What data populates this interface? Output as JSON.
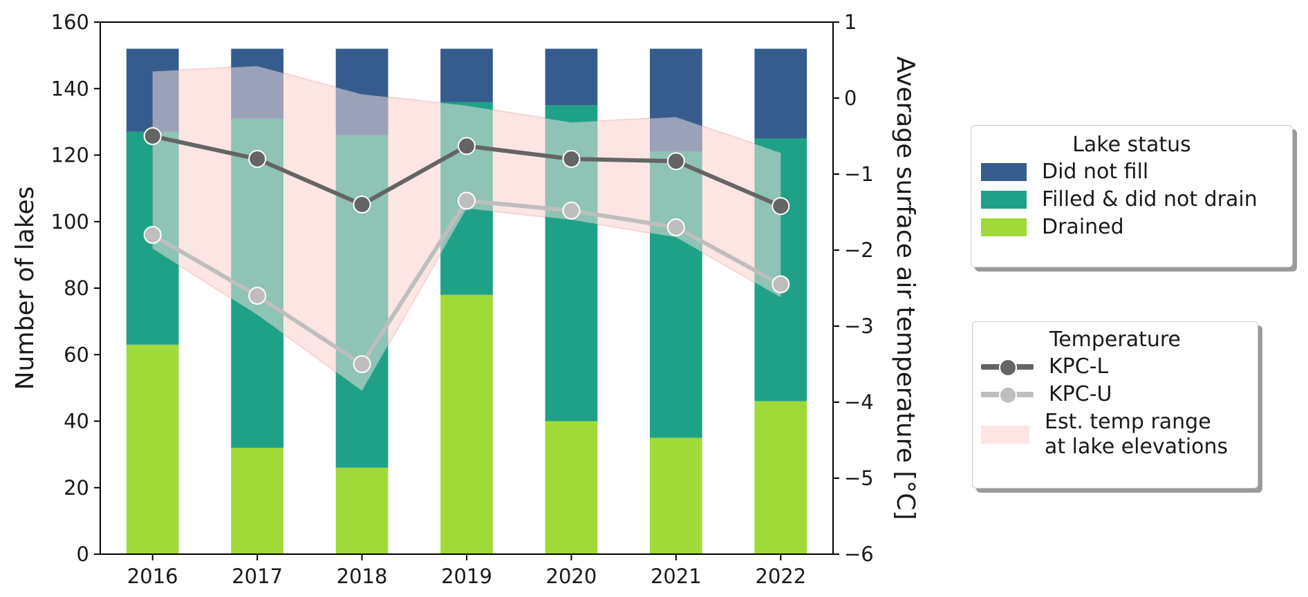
{
  "chart_data": {
    "type": "bar",
    "stacked": true,
    "categories": [
      "2016",
      "2017",
      "2018",
      "2019",
      "2020",
      "2021",
      "2022"
    ],
    "series": [
      {
        "name": "Drained",
        "values": [
          63,
          32,
          26,
          78,
          40,
          35,
          46
        ]
      },
      {
        "name": "Filled & did not drain",
        "values": [
          64,
          99,
          100,
          58,
          95,
          86,
          79
        ]
      },
      {
        "name": "Did not fill",
        "values": [
          25,
          21,
          26,
          16,
          17,
          31,
          27
        ]
      }
    ],
    "temperature_series": [
      {
        "name": "KPC-L",
        "values": [
          -0.5,
          -0.8,
          -1.4,
          -0.63,
          -0.8,
          -0.83,
          -1.42
        ]
      },
      {
        "name": "KPC-U",
        "values": [
          -1.8,
          -2.6,
          -3.5,
          -1.35,
          -1.48,
          -1.7,
          -2.45
        ]
      }
    ],
    "temp_range": {
      "name": "Est. temp range at lake elevations",
      "upper": [
        0.35,
        0.42,
        0.05,
        -0.1,
        -0.32,
        -0.25,
        -0.72
      ],
      "lower": [
        -1.98,
        -2.85,
        -3.85,
        -1.45,
        -1.6,
        -1.83,
        -2.62
      ]
    },
    "xlabel": "",
    "ylabel": "Number of lakes",
    "y2label": "Average surface air temperature  [°C]",
    "ylim": [
      0,
      160
    ],
    "y2lim": [
      -6,
      1
    ],
    "yticks": [
      "0",
      "20",
      "40",
      "60",
      "80",
      "100",
      "120",
      "140",
      "160"
    ],
    "y2ticks": [
      "−6",
      "−5",
      "−4",
      "−3",
      "−2",
      "−1",
      "0",
      "1"
    ],
    "grid": false,
    "legend_position": "right"
  },
  "colors": {
    "drained": "#a0da39",
    "filled": "#1fa187",
    "did_not_fill": "#365c8d",
    "kpc_l": "#646464",
    "kpc_u": "#bebebe",
    "range": "#fde5e3"
  },
  "legend_status": {
    "title": "Lake status",
    "items": [
      "Did not fill",
      "Filled & did not drain",
      "Drained"
    ]
  },
  "legend_temp": {
    "title": "Temperature",
    "kpc_l": "KPC-L",
    "kpc_u": "KPC-U",
    "range_line1": "Est. temp range",
    "range_line2": "at lake elevations"
  }
}
